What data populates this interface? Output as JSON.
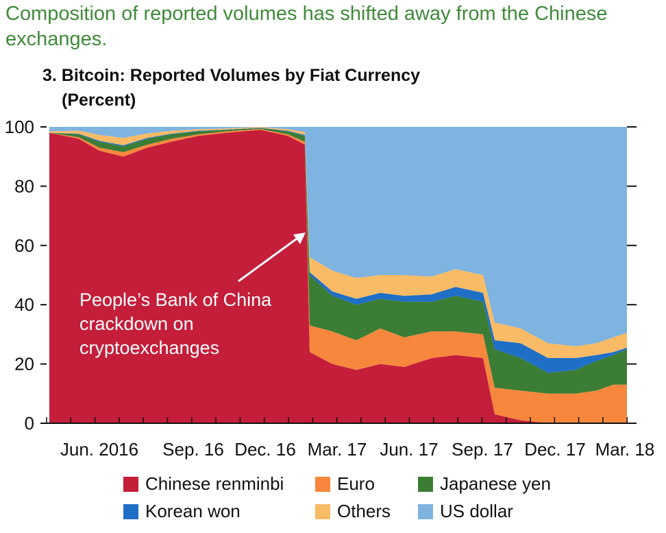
{
  "headline": "Composition of reported volumes has shifted away from the Chinese exchanges.",
  "chart_title": "3. Bitcoin: Reported Volumes by Fiat Currency",
  "chart_subtitle": "(Percent)",
  "colors": {
    "chinese_renminbi": "#c41e3a",
    "euro": "#f7873d",
    "japanese_yen": "#3b7d35",
    "korean_won": "#1f6fc6",
    "others": "#f9bb65",
    "us_dollar": "#7fb3e0",
    "annotation_text": "#ffffff"
  },
  "chart_data": {
    "type": "area",
    "stacked": true,
    "title": "3. Bitcoin: Reported Volumes by Fiat Currency",
    "subtitle": "(Percent)",
    "ylim": [
      0,
      100
    ],
    "yticks": [
      "0",
      "20",
      "40",
      "60",
      "80",
      "100"
    ],
    "xtick_labels": [
      "Jun. 2016",
      "Sep. 16",
      "Dec. 16",
      "Mar. 17",
      "Jun. 17",
      "Sep. 17",
      "Dec. 17",
      "Mar. 18"
    ],
    "xlim": [
      "2016-04",
      "2018-03"
    ],
    "grid": false,
    "legend_position": "bottom",
    "x": [
      "2016-04",
      "2016-05",
      "2016-06",
      "2016-07",
      "2016-08",
      "2016-09",
      "2016-10",
      "2016-11",
      "2016-12",
      "2017-01-mid",
      "2017-01-late",
      "2017-02",
      "2017-03",
      "2017-04",
      "2017-05",
      "2017-06",
      "2017-07",
      "2017-08",
      "2017-09-mid",
      "2017-09-late",
      "2017-10",
      "2017-11",
      "2017-12",
      "2018-01",
      "2018-02",
      "2018-03"
    ],
    "series": [
      {
        "name": "Chinese renminbi",
        "values": [
          98,
          96,
          92,
          90,
          93,
          95,
          97,
          98,
          99,
          97,
          94,
          24,
          20,
          18,
          20,
          19,
          22,
          23,
          22,
          3,
          1,
          0,
          0,
          0,
          0,
          0
        ]
      },
      {
        "name": "Euro",
        "values": [
          0,
          0.5,
          1,
          1.5,
          1,
          1,
          0.5,
          0.5,
          0.3,
          0.5,
          1,
          9,
          11,
          10,
          12,
          10,
          9,
          8,
          8,
          9,
          10,
          10,
          10,
          11,
          13,
          13
        ]
      },
      {
        "name": "Japanese yen",
        "values": [
          0,
          1,
          2,
          2,
          2,
          1.5,
          1,
          0.5,
          0.3,
          1,
          2,
          17,
          12,
          12,
          10,
          12,
          10,
          12,
          11,
          13,
          11,
          7,
          8,
          10,
          10,
          12
        ]
      },
      {
        "name": "Korean won",
        "values": [
          0,
          0.2,
          0.3,
          0.3,
          0.3,
          0.2,
          0.2,
          0.1,
          0.1,
          0.2,
          0.3,
          1,
          1.5,
          2,
          2,
          2,
          2.5,
          3,
          3,
          3,
          5,
          5,
          4,
          2,
          1,
          0.5
        ]
      },
      {
        "name": "Others",
        "values": [
          0.5,
          1,
          2,
          2.5,
          1.5,
          1,
          0.5,
          0.4,
          0.3,
          0.5,
          1,
          5,
          7,
          7,
          6,
          7,
          6,
          6,
          6,
          6,
          5,
          5,
          4,
          4,
          5,
          5
        ]
      },
      {
        "name": "US dollar",
        "values": [
          1.5,
          1.3,
          2.7,
          3.7,
          2.2,
          1.3,
          0.8,
          0.5,
          0.0,
          0.8,
          1.7,
          44,
          48.5,
          51,
          50,
          50,
          50.5,
          48,
          50,
          66,
          68,
          73,
          74,
          73,
          71,
          69.5
        ]
      }
    ],
    "annotations": [
      {
        "text": "People’s Bank of China crackdown on cryptoexchanges",
        "lines": [
          "People’s Bank of China",
          "crackdown on",
          "cryptoexchanges"
        ],
        "points_to": "2017-02"
      }
    ]
  },
  "legend": {
    "items": [
      {
        "label": "Chinese renminbi",
        "color_key": "chinese_renminbi"
      },
      {
        "label": "Euro",
        "color_key": "euro"
      },
      {
        "label": "Japanese yen",
        "color_key": "japanese_yen"
      },
      {
        "label": "Korean won",
        "color_key": "korean_won"
      },
      {
        "label": "Others",
        "color_key": "others"
      },
      {
        "label": "US dollar",
        "color_key": "us_dollar"
      }
    ]
  }
}
